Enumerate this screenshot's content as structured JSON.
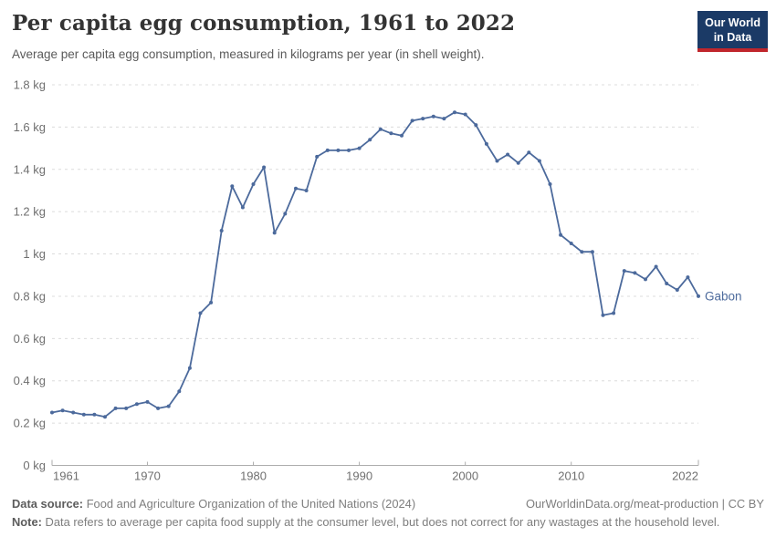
{
  "header": {
    "title": "Per capita egg consumption, 1961 to 2022",
    "subtitle": "Average per capita egg consumption, measured in kilograms per year (in shell weight)."
  },
  "logo": {
    "line1": "Our World",
    "line2": "in Data",
    "bg_color": "#1B3A66",
    "accent_color": "#C0262C"
  },
  "chart_data": {
    "type": "line",
    "title": "Per capita egg consumption, 1961 to 2022",
    "unit": "kg",
    "grid": "horizontal-dashed",
    "legend": "end-of-line-label",
    "xlim": [
      1961,
      2022
    ],
    "ylim": [
      0,
      1.8
    ],
    "yticks": [
      {
        "value": 0,
        "label": "0 kg"
      },
      {
        "value": 0.2,
        "label": "0.2 kg"
      },
      {
        "value": 0.4,
        "label": "0.4 kg"
      },
      {
        "value": 0.6,
        "label": "0.6 kg"
      },
      {
        "value": 0.8,
        "label": "0.8 kg"
      },
      {
        "value": 1,
        "label": "1 kg"
      },
      {
        "value": 1.2,
        "label": "1.2 kg"
      },
      {
        "value": 1.4,
        "label": "1.4 kg"
      },
      {
        "value": 1.6,
        "label": "1.6 kg"
      },
      {
        "value": 1.8,
        "label": "1.8 kg"
      }
    ],
    "xticks": [
      {
        "value": 1961,
        "label": "1961"
      },
      {
        "value": 1970,
        "label": "1970"
      },
      {
        "value": 1980,
        "label": "1980"
      },
      {
        "value": 1990,
        "label": "1990"
      },
      {
        "value": 2000,
        "label": "2000"
      },
      {
        "value": 2010,
        "label": "2010"
      },
      {
        "value": 2022,
        "label": "2022"
      }
    ],
    "x": [
      1961,
      1962,
      1963,
      1964,
      1965,
      1966,
      1967,
      1968,
      1969,
      1970,
      1971,
      1972,
      1973,
      1974,
      1975,
      1976,
      1977,
      1978,
      1979,
      1980,
      1981,
      1982,
      1983,
      1984,
      1985,
      1986,
      1987,
      1988,
      1989,
      1990,
      1991,
      1992,
      1993,
      1994,
      1995,
      1996,
      1997,
      1998,
      1999,
      2000,
      2001,
      2002,
      2003,
      2004,
      2005,
      2006,
      2007,
      2008,
      2009,
      2010,
      2011,
      2012,
      2013,
      2014,
      2015,
      2016,
      2017,
      2018,
      2019,
      2020,
      2021,
      2022
    ],
    "series": [
      {
        "name": "Gabon",
        "color": "#4C6A9C",
        "values": [
          0.25,
          0.26,
          0.25,
          0.24,
          0.24,
          0.23,
          0.27,
          0.27,
          0.29,
          0.3,
          0.27,
          0.28,
          0.35,
          0.46,
          0.72,
          0.77,
          1.11,
          1.32,
          1.22,
          1.33,
          1.41,
          1.1,
          1.19,
          1.31,
          1.3,
          1.46,
          1.49,
          1.49,
          1.49,
          1.5,
          1.54,
          1.59,
          1.57,
          1.56,
          1.63,
          1.64,
          1.65,
          1.64,
          1.67,
          1.66,
          1.61,
          1.52,
          1.44,
          1.47,
          1.43,
          1.48,
          1.44,
          1.33,
          1.09,
          1.05,
          1.01,
          1.01,
          0.71,
          0.72,
          0.92,
          0.91,
          0.88,
          0.94,
          0.86,
          0.83,
          0.89,
          0.8
        ]
      }
    ]
  },
  "footer": {
    "data_source_label": "Data source:",
    "data_source": "Food and Agriculture Organization of the United Nations (2024)",
    "url_text": "OurWorldinData.org/meat-production | CC BY",
    "note_label": "Note:",
    "note": "Data refers to average per capita food supply at the consumer level, but does not correct for any wastages at the household level."
  }
}
